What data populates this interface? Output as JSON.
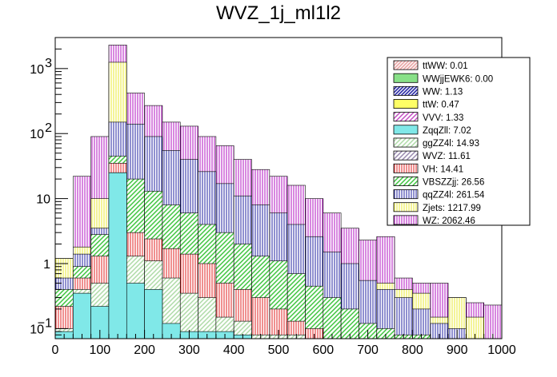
{
  "chart_data": {
    "type": "bar",
    "stacked": true,
    "title": "WVZ_1j_ml1l2",
    "xlabel": "",
    "ylabel": "",
    "xlim": [
      0,
      1000
    ],
    "ylim": [
      0.07,
      3000
    ],
    "yscale": "log",
    "bin_width": 40,
    "x_ticks": [
      "0",
      "100",
      "200",
      "300",
      "400",
      "500",
      "600",
      "700",
      "800",
      "900",
      "1000"
    ],
    "y_ticks": [
      {
        "value": 0.1,
        "base": "10",
        "exp": "−1"
      },
      {
        "value": 1,
        "base": "1",
        "exp": ""
      },
      {
        "value": 10,
        "base": "10",
        "exp": ""
      },
      {
        "value": 100,
        "base": "10",
        "exp": "2"
      },
      {
        "value": 1000,
        "base": "10",
        "exp": "3"
      }
    ],
    "legend_position": "top-right",
    "series": [
      {
        "name": "ttWW",
        "legend": "ttWW: 0.01",
        "color": "#e8a0a0",
        "hatch": "dense"
      },
      {
        "name": "WWjjEWK6",
        "legend": "WWjjEWK6: 0.00",
        "color": "#88e088",
        "hatch": "solid"
      },
      {
        "name": "WW",
        "legend": "WW: 1.13",
        "color": "#2020a0",
        "hatch": "dense"
      },
      {
        "name": "ttW",
        "legend": "ttW: 0.47",
        "color": "#ffff66",
        "hatch": "solid"
      },
      {
        "name": "VVV",
        "legend": "VVV: 1.33",
        "color": "#c040c0",
        "hatch": "diag"
      },
      {
        "name": "ZqqZll",
        "legend": "ZqqZll: 7.02",
        "color": "#80e8e8",
        "hatch": "solid"
      },
      {
        "name": "ggZZ4l",
        "legend": "ggZZ4l: 14.93",
        "color": "#a8d8a0",
        "hatch": "diag"
      },
      {
        "name": "WVZ",
        "legend": "WVZ: 11.61",
        "color": "#9080a8",
        "hatch": "diag"
      },
      {
        "name": "VH",
        "legend": "VH: 14.41",
        "color": "#e02020",
        "hatch": "vert"
      },
      {
        "name": "VBSZZjj",
        "legend": "VBSZZjj: 26.56",
        "color": "#30c030",
        "hatch": "diag"
      },
      {
        "name": "qqZZ4l",
        "legend": "qqZZ4l: 261.54",
        "color": "#2020a0",
        "hatch": "vert"
      },
      {
        "name": "Zjets",
        "legend": "Zjets: 1217.99",
        "color": "#e8e830",
        "hatch": "vert"
      },
      {
        "name": "WZ",
        "legend": "WZ: 2062.46",
        "color": "#b010c0",
        "hatch": "vert"
      }
    ],
    "stack_tops": [
      {
        "name": "ZqqZll",
        "values": [
          0.09,
          0.35,
          0.22,
          25,
          0.5,
          0.4,
          0.12,
          0.09,
          0.09,
          0.09,
          0.08,
          0,
          0,
          0,
          0,
          0,
          0,
          0,
          0,
          0,
          0,
          0,
          0,
          0,
          0
        ]
      },
      {
        "name": "ggZZ4l",
        "values": [
          0.1,
          0.4,
          0.5,
          25,
          1.3,
          1.1,
          0.6,
          0.35,
          0.3,
          0.15,
          0.13,
          0.08,
          0.08,
          0.08,
          0,
          0,
          0,
          0,
          0,
          0,
          0,
          0,
          0,
          0,
          0
        ]
      },
      {
        "name": "VH",
        "values": [
          0.22,
          0.6,
          1.3,
          35,
          3,
          2.4,
          1.7,
          1.4,
          1.0,
          0.5,
          0.4,
          0.3,
          0.2,
          0.13,
          0.1,
          0,
          0,
          0,
          0,
          0,
          0,
          0,
          0,
          0,
          0
        ]
      },
      {
        "name": "VBSZZjj",
        "values": [
          0.4,
          0.9,
          2.8,
          45,
          20,
          13,
          8,
          6,
          4,
          3,
          2,
          1.3,
          1.1,
          0.7,
          0.45,
          0.3,
          0.2,
          0.12,
          0.1,
          0.08,
          0.08,
          0,
          0,
          0,
          0
        ]
      },
      {
        "name": "qqZZ4l",
        "values": [
          0.6,
          1.4,
          3.5,
          150,
          140,
          90,
          55,
          40,
          26,
          17,
          11,
          8,
          6,
          4,
          2.6,
          1.5,
          1.0,
          0.55,
          0.4,
          0.3,
          0.2,
          0.12,
          0.1,
          0,
          0
        ]
      },
      {
        "name": "Zjets",
        "values": [
          1.2,
          1.8,
          10,
          1250,
          130,
          85,
          35,
          18,
          9,
          6.5,
          5,
          3,
          2.2,
          1.3,
          1.6,
          0.9,
          0.8,
          0.5,
          0.5,
          0.4,
          0.35,
          0.15,
          0.3,
          0.15,
          0
        ]
      },
      {
        "name": "WZ",
        "values": [
          1.2,
          22,
          90,
          2300,
          420,
          270,
          150,
          130,
          90,
          65,
          40,
          28,
          22,
          16,
          10,
          6,
          3.5,
          2.3,
          2.6,
          0.6,
          0.5,
          0.5,
          0.3,
          0.25,
          0.23
        ]
      }
    ]
  }
}
